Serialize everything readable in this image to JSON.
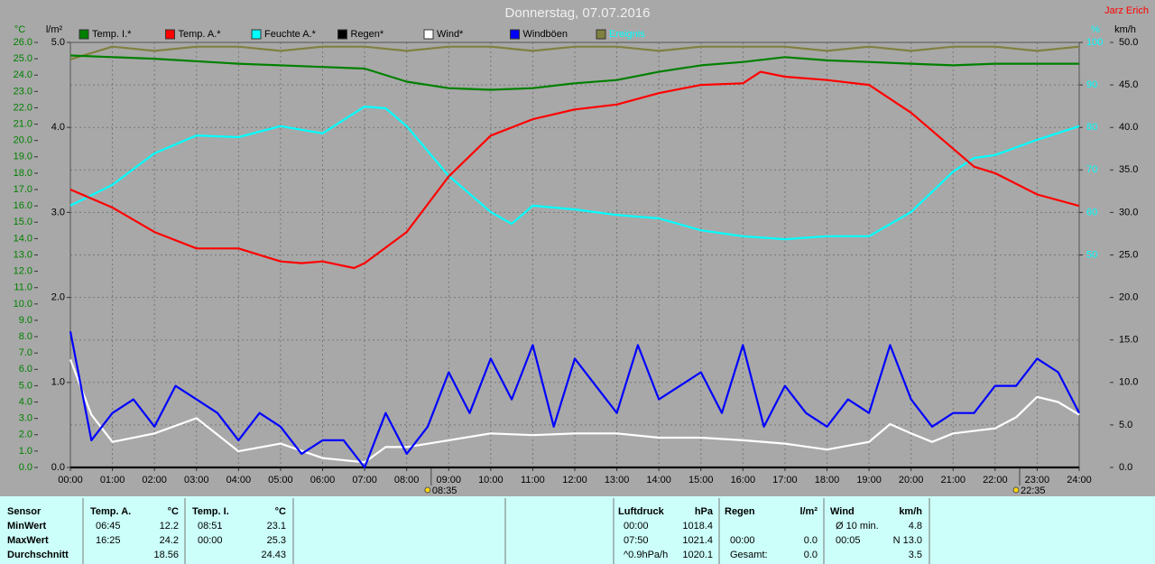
{
  "chart_data": {
    "type": "line",
    "title": "Donnerstag, 07.07.2016",
    "author": "Jarz Erich",
    "ylabel": "°C",
    "y2label": "l/m²",
    "y3label": "%",
    "y4label": "km/h",
    "xlim": [
      0,
      24
    ],
    "xticks": [
      {
        "value": 0,
        "label": "00:00"
      },
      {
        "value": 1,
        "label": "01:00"
      },
      {
        "value": 2,
        "label": "02:00"
      },
      {
        "value": 3,
        "label": "03:00"
      },
      {
        "value": 4,
        "label": "04:00"
      },
      {
        "value": 5,
        "label": "05:00"
      },
      {
        "value": 6,
        "label": "06:00"
      },
      {
        "value": 7,
        "label": "07:00"
      },
      {
        "value": 8,
        "label": "08:00"
      },
      {
        "value": 9,
        "label": "09:00"
      },
      {
        "value": 10,
        "label": "10:00"
      },
      {
        "value": 11,
        "label": "11:00"
      },
      {
        "value": 12,
        "label": "12:00"
      },
      {
        "value": 13,
        "label": "13:00"
      },
      {
        "value": 14,
        "label": "14:00"
      },
      {
        "value": 15,
        "label": "15:00"
      },
      {
        "value": 16,
        "label": "16:00"
      },
      {
        "value": 17,
        "label": "17:00"
      },
      {
        "value": 18,
        "label": "18:00"
      },
      {
        "value": 19,
        "label": "19:00"
      },
      {
        "value": 20,
        "label": "20:00"
      },
      {
        "value": 21,
        "label": "21:00"
      },
      {
        "value": 22,
        "label": "22:00"
      },
      {
        "value": 23,
        "label": "23:00"
      },
      {
        "value": 24,
        "label": "24:00"
      }
    ],
    "ylim": [
      0,
      26
    ],
    "yticks": [
      {
        "value": 0,
        "label": "0.0"
      },
      {
        "value": 1,
        "label": "1.0"
      },
      {
        "value": 2,
        "label": "2.0"
      },
      {
        "value": 3,
        "label": "3.0"
      },
      {
        "value": 4,
        "label": "4.0"
      },
      {
        "value": 5,
        "label": "5.0"
      },
      {
        "value": 6,
        "label": "6.0"
      },
      {
        "value": 7,
        "label": "7.0"
      },
      {
        "value": 8,
        "label": "8.0"
      },
      {
        "value": 9,
        "label": "9.0"
      },
      {
        "value": 10,
        "label": "10.0"
      },
      {
        "value": 11,
        "label": "11.0"
      },
      {
        "value": 12,
        "label": "12.0"
      },
      {
        "value": 13,
        "label": "13.0"
      },
      {
        "value": 14,
        "label": "14.0"
      },
      {
        "value": 15,
        "label": "15.0"
      },
      {
        "value": 16,
        "label": "16.0"
      },
      {
        "value": 17,
        "label": "17.0"
      },
      {
        "value": 18,
        "label": "18.0"
      },
      {
        "value": 19,
        "label": "19.0"
      },
      {
        "value": 20,
        "label": "20.0"
      },
      {
        "value": 21,
        "label": "21.0"
      },
      {
        "value": 22,
        "label": "22.0"
      },
      {
        "value": 23,
        "label": "23.0"
      },
      {
        "value": 24,
        "label": "24.0"
      },
      {
        "value": 25,
        "label": "25.0"
      },
      {
        "value": 26,
        "label": "26.0"
      }
    ],
    "y2lim": [
      0,
      5
    ],
    "y2ticks": [
      {
        "value": 0,
        "label": "0.0"
      },
      {
        "value": 1,
        "label": "1.0"
      },
      {
        "value": 2,
        "label": "2.0"
      },
      {
        "value": 3,
        "label": "3.0"
      },
      {
        "value": 4,
        "label": "4.0"
      },
      {
        "value": 5,
        "label": "5.0"
      }
    ],
    "y3lim": [
      0,
      100
    ],
    "y3ticks": [
      50,
      60,
      70,
      80,
      90,
      100
    ],
    "y4lim": [
      0,
      50
    ],
    "y4ticks": [
      {
        "value": 0,
        "label": "0.0"
      },
      {
        "value": 5,
        "label": "5.0"
      },
      {
        "value": 10,
        "label": "10.0"
      },
      {
        "value": 15,
        "label": "15.0"
      },
      {
        "value": 20,
        "label": "20.0"
      },
      {
        "value": 25,
        "label": "25.0"
      },
      {
        "value": 30,
        "label": "30.0"
      },
      {
        "value": 35,
        "label": "35.0"
      },
      {
        "value": 40,
        "label": "40.0"
      },
      {
        "value": 45,
        "label": "45.0"
      },
      {
        "value": 50,
        "label": "50.0"
      }
    ],
    "grid": true,
    "sun_markers": [
      {
        "x": 8.5833,
        "label": "08:35"
      },
      {
        "x": 22.5833,
        "label": "22:35"
      }
    ],
    "series": [
      {
        "name": "Temp. I.*",
        "color": "#008000",
        "axis": "y",
        "x": [
          0,
          2,
          4,
          6,
          7,
          8,
          9,
          10,
          11,
          12,
          13,
          14,
          15,
          16,
          17,
          18,
          19,
          20,
          21,
          22,
          23,
          24
        ],
        "values": [
          25.2,
          25.0,
          24.7,
          24.5,
          24.4,
          23.6,
          23.2,
          23.1,
          23.2,
          23.5,
          23.7,
          24.2,
          24.6,
          24.8,
          25.1,
          24.9,
          24.8,
          24.7,
          24.6,
          24.7,
          24.7,
          24.7
        ]
      },
      {
        "name": "Temp. A.*",
        "color": "#ff0000",
        "axis": "y",
        "x": [
          0,
          1,
          2,
          3,
          4,
          5,
          5.5,
          6,
          6.75,
          7,
          8,
          9,
          10,
          11,
          12,
          13,
          14,
          15,
          16,
          16.42,
          17,
          18,
          19,
          20,
          21,
          21.5,
          22,
          23,
          24
        ],
        "values": [
          17.0,
          15.9,
          14.4,
          13.4,
          13.4,
          12.6,
          12.5,
          12.6,
          12.2,
          12.5,
          14.4,
          17.8,
          20.3,
          21.3,
          21.9,
          22.2,
          22.9,
          23.4,
          23.5,
          24.2,
          23.9,
          23.7,
          23.4,
          21.7,
          19.5,
          18.4,
          18.0,
          16.7,
          16.0
        ]
      },
      {
        "name": "Feuchte A.*",
        "color": "#00ffff",
        "axis": "y3",
        "x": [
          0,
          1,
          2,
          3,
          4,
          5,
          6,
          7,
          7.5,
          8,
          9,
          10,
          10.5,
          11,
          12,
          13,
          14,
          15,
          16,
          17,
          18,
          19,
          20,
          21,
          21.5,
          22,
          23,
          24
        ],
        "values": [
          61.6,
          66.5,
          73.9,
          78.1,
          77.7,
          80.3,
          78.6,
          84.9,
          84.5,
          80.3,
          68.6,
          60.1,
          57.3,
          61.6,
          60.7,
          59.4,
          58.6,
          55.8,
          54.4,
          53.7,
          54.4,
          54.4,
          60.1,
          69.6,
          72.8,
          73.5,
          77.1,
          80.3
        ]
      },
      {
        "name": "Regen*",
        "color": "#000000",
        "axis": "y2",
        "x": [
          0,
          24
        ],
        "values": [
          0,
          0
        ]
      },
      {
        "name": "Wind*",
        "color": "#ffffff",
        "axis": "y4",
        "x": [
          0,
          0.5,
          1,
          2,
          3,
          4,
          5,
          6,
          7,
          7.5,
          8,
          9,
          10,
          11,
          12,
          13,
          14,
          15,
          16,
          17,
          18,
          19,
          19.5,
          20,
          20.5,
          21,
          22,
          22.5,
          23,
          23.5,
          24
        ],
        "values": [
          12.7,
          6.2,
          3.0,
          4.0,
          5.8,
          1.9,
          2.8,
          1.1,
          0.6,
          2.4,
          2.4,
          3.2,
          4.0,
          3.8,
          4.0,
          4.0,
          3.5,
          3.5,
          3.2,
          2.8,
          2.1,
          3.0,
          5.1,
          4.0,
          3.0,
          4.0,
          4.6,
          5.9,
          8.3,
          7.7,
          6.2
        ]
      },
      {
        "name": "Windböen",
        "color": "#0000ff",
        "axis": "y4",
        "x": [
          0,
          0.5,
          1,
          1.5,
          2,
          2.5,
          3,
          3.5,
          4,
          4.5,
          5,
          5.5,
          6,
          6.5,
          7,
          7.5,
          8,
          8.5,
          9,
          9.5,
          10,
          10.5,
          11,
          11.5,
          12,
          12.5,
          13,
          13.5,
          14,
          14.5,
          15,
          15.5,
          16,
          16.5,
          17,
          17.5,
          18,
          18.5,
          19,
          19.5,
          20,
          20.5,
          21,
          21.5,
          22,
          22.5,
          23,
          23.5,
          24
        ],
        "values": [
          16.0,
          3.2,
          6.4,
          8.0,
          4.8,
          9.6,
          8.0,
          6.4,
          3.2,
          6.4,
          4.8,
          1.6,
          3.2,
          3.2,
          0.0,
          6.4,
          1.6,
          4.8,
          11.2,
          6.4,
          12.8,
          8.0,
          14.4,
          4.8,
          12.8,
          9.6,
          6.4,
          14.4,
          8.0,
          9.6,
          11.2,
          6.4,
          14.4,
          4.8,
          9.6,
          6.4,
          4.8,
          8.0,
          6.4,
          14.4,
          8.0,
          4.8,
          6.4,
          6.4,
          9.6,
          9.6,
          12.8,
          11.2,
          6.4
        ]
      },
      {
        "name": "Ereignis",
        "color": "#808040",
        "axis": "y3",
        "x": [
          0,
          1,
          2,
          3,
          4,
          5,
          6,
          7,
          8,
          9,
          10,
          11,
          12,
          13,
          14,
          15,
          16,
          17,
          18,
          19,
          20,
          21,
          22,
          23,
          24
        ],
        "values": [
          96,
          99,
          98,
          99,
          99,
          98,
          99,
          99,
          98,
          99,
          99,
          98,
          99,
          99,
          98,
          99,
          99,
          99,
          98,
          99,
          98,
          99,
          99,
          98,
          99
        ]
      }
    ]
  },
  "table": {
    "header": [
      "Sensor",
      "Temp. A.",
      "°C",
      "Temp. I.",
      "°C",
      "Luftdruck",
      "hPa",
      "Regen",
      "l/m²",
      "Wind",
      "km/h"
    ],
    "rows": [
      [
        "MinWert",
        "06:45",
        "12.2",
        "08:51",
        "23.1",
        "00:00",
        "1018.4",
        null,
        null,
        "Ø 10 min.",
        "4.8"
      ],
      [
        "MaxWert",
        "16:25",
        "24.2",
        "00:00",
        "25.3",
        "07:50",
        "1021.4",
        "00:00",
        "0.0",
        "00:05",
        "N 13.0"
      ],
      [
        "Durchschnitt",
        null,
        "18.56",
        null,
        "24.43",
        "^0.9hPa/h",
        "1020.1",
        "Gesamt:",
        "0.0",
        null,
        "3.5"
      ]
    ]
  }
}
